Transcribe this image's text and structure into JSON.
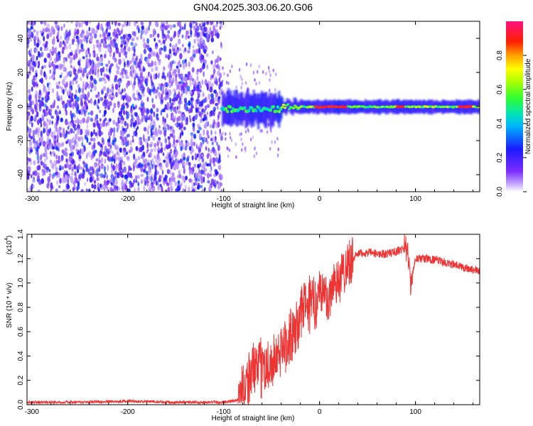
{
  "figure": {
    "title": "GN04.2025.303.06.20.G06"
  },
  "chart_data": [
    {
      "type": "heatmap",
      "xlabel": "Height of straight line (km)",
      "ylabel": "Frequency (Hz)",
      "xlim": [
        -305,
        167
      ],
      "ylim": [
        -50,
        50
      ],
      "xticks": [
        "-300",
        "-200",
        "-100",
        "0",
        "100"
      ],
      "xtick_values": [
        -300,
        -200,
        -100,
        0,
        100
      ],
      "yticks": [
        "40",
        "20",
        "0",
        "-20",
        "-40"
      ],
      "ytick_values": [
        40,
        20,
        0,
        -20,
        -40
      ],
      "regions": [
        {
          "name": "noise",
          "x_range": [
            -305,
            -102
          ],
          "f_range": [
            -50,
            50
          ],
          "amplitude": [
            0.05,
            0.3
          ]
        },
        {
          "name": "signal",
          "x_range": [
            -102,
            167
          ],
          "f_center": 0,
          "amplitude": [
            0.3,
            1.0
          ]
        }
      ],
      "colorbar": {
        "label": "Normalized spectral amplitude",
        "ticks": [
          "0.8",
          "0.6",
          "0.4",
          "0.2",
          "0.0"
        ],
        "tick_values": [
          0.8,
          0.6,
          0.4,
          0.2,
          0.0
        ],
        "range": [
          0,
          1
        ],
        "colormap": "rainbow (purple-blue-cyan-green-yellow-red-magenta)"
      },
      "grid": false
    },
    {
      "type": "line",
      "xlabel": "Height of straight line (km)",
      "ylabel": "SNR (10 * v/v)",
      "y_multiplier": "(x10",
      "y_multiplier_exp": "4",
      "y_multiplier_close": ")",
      "xlim": [
        -305,
        167
      ],
      "ylim": [
        0,
        1.4
      ],
      "xticks": [
        "-300",
        "-200",
        "-100",
        "0",
        "100"
      ],
      "xtick_values": [
        -300,
        -200,
        -100,
        0,
        100
      ],
      "yticks": [
        "1.4",
        "1.2",
        "1.0",
        "0.8",
        "0.6",
        "0.4",
        "0.2",
        "0.0"
      ],
      "ytick_values": [
        1.4,
        1.2,
        1.0,
        0.8,
        0.6,
        0.4,
        0.2,
        0.0
      ],
      "series": [
        {
          "color": "#ee3333",
          "x": [
            -305,
            -250,
            -200,
            -150,
            -100,
            -90,
            -85,
            -80,
            -75,
            -70,
            -65,
            -60,
            -55,
            -50,
            -45,
            -40,
            -35,
            -30,
            -25,
            -20,
            -15,
            -12,
            -8,
            -5,
            0,
            5,
            10,
            15,
            20,
            25,
            30,
            35,
            40,
            50,
            60,
            70,
            80,
            85,
            90,
            93,
            95,
            100,
            110,
            120,
            130,
            140,
            150,
            160,
            167
          ],
          "y": [
            0.02,
            0.02,
            0.03,
            0.02,
            0.02,
            0.03,
            0.04,
            0.12,
            0.2,
            0.28,
            0.3,
            0.3,
            0.32,
            0.35,
            0.38,
            0.45,
            0.5,
            0.55,
            0.6,
            0.72,
            0.85,
            0.75,
            0.9,
            0.8,
            0.95,
            0.9,
            0.85,
            1.05,
            1.0,
            1.1,
            1.18,
            1.2,
            1.24,
            1.25,
            1.24,
            1.24,
            1.26,
            1.27,
            1.3,
            1.2,
            0.98,
            1.2,
            1.2,
            1.19,
            1.17,
            1.15,
            1.13,
            1.11,
            1.1
          ]
        }
      ],
      "grid": false
    }
  ]
}
